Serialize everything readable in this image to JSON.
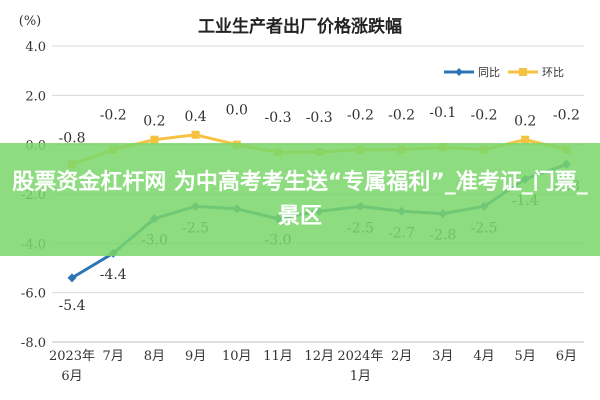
{
  "chart_data": {
    "type": "line",
    "title": "工业生产者出厂价格涨跌幅",
    "unit_label": "(%)",
    "categories": [
      "2023年\n6月",
      "7月",
      "8月",
      "9月",
      "10月",
      "11月",
      "12月",
      "2024年\n1月",
      "2月",
      "3月",
      "4月",
      "5月",
      "6月"
    ],
    "ylim": [
      -8.0,
      4.0
    ],
    "yticks": [
      "4.0",
      "2.0",
      "0.0",
      "-2.0",
      "-4.0",
      "-6.0",
      "-8.0"
    ],
    "ytick_values": [
      4,
      2,
      0,
      -2,
      -4,
      -6,
      -8
    ],
    "grid": true,
    "legend_position": "top-right",
    "series": [
      {
        "name": "同比",
        "color": "#2e75b6",
        "values": [
          -5.4,
          -4.4,
          -3.0,
          -2.5,
          -2.6,
          -3.0,
          -2.7,
          -2.5,
          -2.7,
          -2.8,
          -2.5,
          -1.4,
          -0.8
        ],
        "labels": [
          "-5.4",
          "-4.4",
          "-3.0",
          "-2.5",
          "",
          "-3.0",
          "",
          "-2.5",
          "-2.7",
          "-2.8",
          "-2.5",
          "-1.4",
          "-0.8"
        ]
      },
      {
        "name": "环比",
        "color": "#f5c242",
        "values": [
          -0.8,
          -0.2,
          0.2,
          0.4,
          0.0,
          -0.3,
          -0.3,
          -0.2,
          -0.2,
          -0.1,
          -0.2,
          0.2,
          -0.2
        ],
        "labels": [
          "-0.8",
          "-0.2",
          "0.2",
          "0.4",
          "0.0",
          "-0.3",
          "-0.3",
          "-0.2",
          "-0.2",
          "-0.1",
          "-0.2",
          "0.2",
          "-0.2"
        ]
      }
    ]
  },
  "overlay": {
    "banner_text": "股票资金杠杆网 为中高考考生送“专属福利”_准考证_门票_景区",
    "banner_color": "#7ad66a"
  }
}
